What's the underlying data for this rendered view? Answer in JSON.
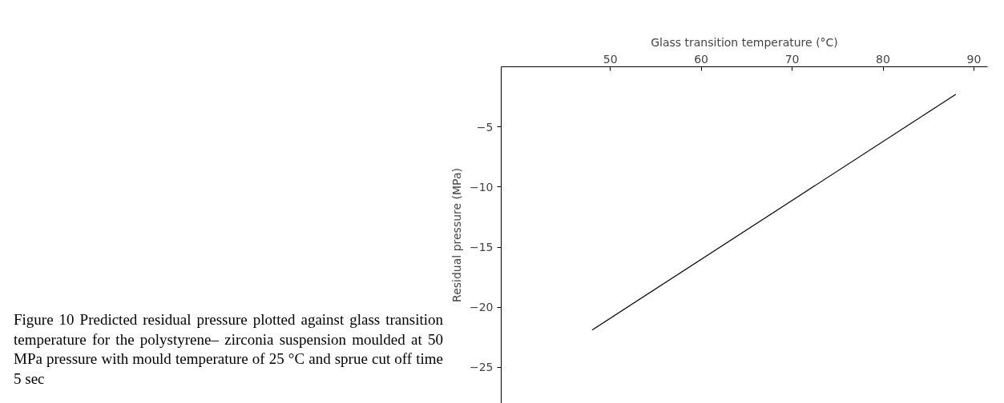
{
  "chart_data": {
    "type": "line",
    "xlabel": "Glass transition temperature (°C)",
    "ylabel": "Residual pressure (MPa)",
    "x": [
      48.0,
      88.0
    ],
    "series": [
      {
        "color": "#000000",
        "values": [
          -21.9,
          -2.3
        ]
      }
    ],
    "xlim": [
      38,
      91.5
    ],
    "ylim": [
      -28,
      0
    ],
    "xticks": [
      50,
      60,
      70,
      80,
      90
    ],
    "yticks": [
      -5,
      -10,
      -15,
      -20,
      -25
    ],
    "grid": false,
    "annotations": [
      "Figure 10 Predicted residual pressure plotted against glass transition temperature for the polystyrene– zirconia suspension moulded at 50 MPa pressure with mould temperature of 25 °C and sprue cut off time 5 sec"
    ]
  }
}
